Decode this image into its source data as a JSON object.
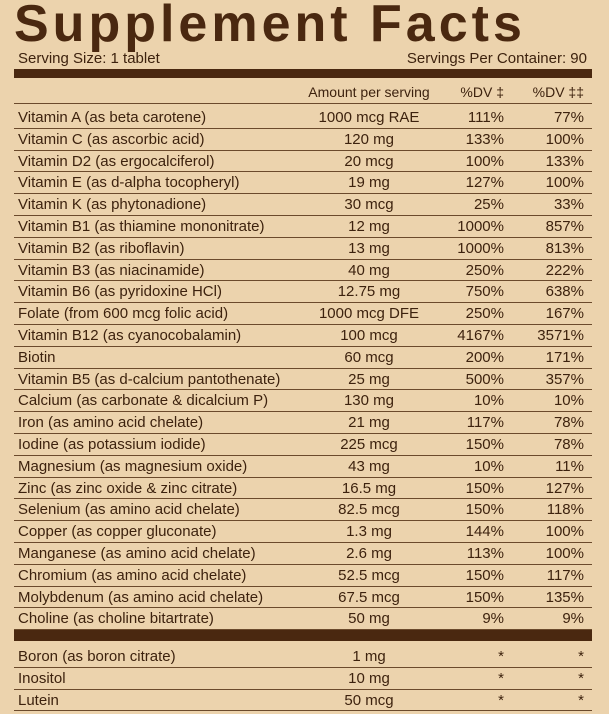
{
  "header": {
    "title": "Supplement Facts",
    "serving_size": "Serving Size: 1 tablet",
    "servings_per_container": "Servings Per Container: 90"
  },
  "table": {
    "columns": [
      "Amount per serving",
      "%DV ‡",
      "%DV ‡‡"
    ],
    "rows": [
      [
        "Vitamin A (as beta carotene)",
        "1000 mcg RAE",
        "111%",
        "77%"
      ],
      [
        "Vitamin C (as ascorbic acid)",
        "120 mg",
        "133%",
        "100%"
      ],
      [
        "Vitamin D2 (as ergocalciferol)",
        "20 mcg",
        "100%",
        "133%"
      ],
      [
        "Vitamin E (as d-alpha tocopheryl)",
        "19 mg",
        "127%",
        "100%"
      ],
      [
        "Vitamin K (as phytonadione)",
        "30 mcg",
        "25%",
        "33%"
      ],
      [
        "Vitamin B1 (as thiamine mononitrate)",
        "12 mg",
        "1000%",
        "857%"
      ],
      [
        "Vitamin B2 (as riboflavin)",
        "13 mg",
        "1000%",
        "813%"
      ],
      [
        "Vitamin B3 (as niacinamide)",
        "40 mg",
        "250%",
        "222%"
      ],
      [
        "Vitamin B6 (as pyridoxine HCl)",
        "12.75 mg",
        "750%",
        "638%"
      ],
      [
        "Folate (from 600 mcg folic acid)",
        "1000 mcg DFE",
        "250%",
        "167%"
      ],
      [
        "Vitamin B12 (as cyanocobalamin)",
        "100 mcg",
        "4167%",
        "3571%"
      ],
      [
        "Biotin",
        "60 mcg",
        "200%",
        "171%"
      ],
      [
        "Vitamin B5 (as d-calcium pantothenate)",
        "25 mg",
        "500%",
        "357%"
      ],
      [
        "Calcium (as carbonate & dicalcium P)",
        "130 mg",
        "10%",
        "10%"
      ],
      [
        "Iron (as amino acid chelate)",
        "21 mg",
        "117%",
        "78%"
      ],
      [
        "Iodine (as potassium iodide)",
        "225 mcg",
        "150%",
        "78%"
      ],
      [
        "Magnesium (as magnesium oxide)",
        "43 mg",
        "10%",
        "11%"
      ],
      [
        "Zinc (as zinc oxide & zinc citrate)",
        "16.5 mg",
        "150%",
        "127%"
      ],
      [
        "Selenium (as amino acid chelate)",
        "82.5 mcg",
        "150%",
        "118%"
      ],
      [
        "Copper (as copper gluconate)",
        "1.3 mg",
        "144%",
        "100%"
      ],
      [
        "Manganese (as amino acid chelate)",
        "2.6 mg",
        "113%",
        "100%"
      ],
      [
        "Chromium (as amino acid chelate)",
        "52.5 mcg",
        "150%",
        "117%"
      ],
      [
        "Molybdenum (as amino acid chelate)",
        "67.5 mcg",
        "150%",
        "135%"
      ],
      [
        "Choline (as choline bitartrate)",
        "50 mg",
        "9%",
        "9%"
      ]
    ]
  },
  "table2": {
    "rows": [
      [
        "Boron (as boron citrate)",
        "1 mg",
        "*",
        "*"
      ],
      [
        "Inositol",
        "10 mg",
        "*",
        "*"
      ],
      [
        "Lutein",
        "50 mcg",
        "*",
        "*"
      ]
    ]
  }
}
